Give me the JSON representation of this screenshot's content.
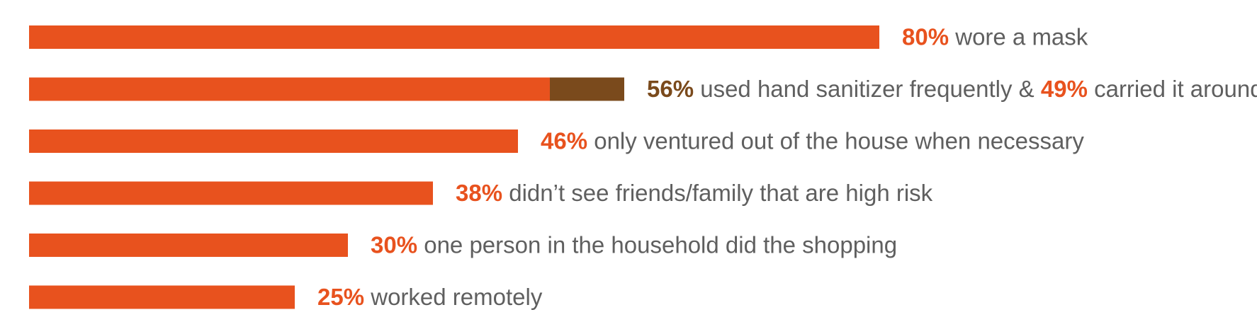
{
  "chart_data": {
    "type": "bar",
    "orientation": "horizontal",
    "title": "",
    "xlabel": "",
    "ylabel": "",
    "xlim": [
      0,
      100
    ],
    "grid": false,
    "legend": "none",
    "colors": {
      "primary": "#e8521e",
      "secondary": "#7a4a1c",
      "text": "#5f5f5f"
    },
    "rows": [
      {
        "value": 80,
        "color": "primary",
        "label": [
          {
            "text": "80%",
            "style": "pct",
            "color": "primary"
          },
          {
            "text": " wore a mask",
            "style": "desc"
          }
        ]
      },
      {
        "value": 49,
        "overlay_value": 56,
        "color": "primary",
        "overlay_color": "secondary",
        "label": [
          {
            "text": "56%",
            "style": "pct",
            "color": "secondary"
          },
          {
            "text": " used hand sanitizer frequently & ",
            "style": "desc"
          },
          {
            "text": "49%",
            "style": "pct",
            "color": "primary"
          },
          {
            "text": " carried it around",
            "style": "desc"
          }
        ]
      },
      {
        "value": 46,
        "color": "primary",
        "label": [
          {
            "text": "46%",
            "style": "pct",
            "color": "primary"
          },
          {
            "text": " only ventured out of the house when necessary",
            "style": "desc"
          }
        ]
      },
      {
        "value": 38,
        "color": "primary",
        "label": [
          {
            "text": "38%",
            "style": "pct",
            "color": "primary"
          },
          {
            "text": " didn’t see friends/family that are high risk",
            "style": "desc"
          }
        ]
      },
      {
        "value": 30,
        "color": "primary",
        "label": [
          {
            "text": "30%",
            "style": "pct",
            "color": "primary"
          },
          {
            "text": " one person in the household did the shopping",
            "style": "desc"
          }
        ]
      },
      {
        "value": 25,
        "color": "primary",
        "label": [
          {
            "text": "25%",
            "style": "pct",
            "color": "primary"
          },
          {
            "text": " worked remotely",
            "style": "desc"
          }
        ]
      }
    ]
  }
}
